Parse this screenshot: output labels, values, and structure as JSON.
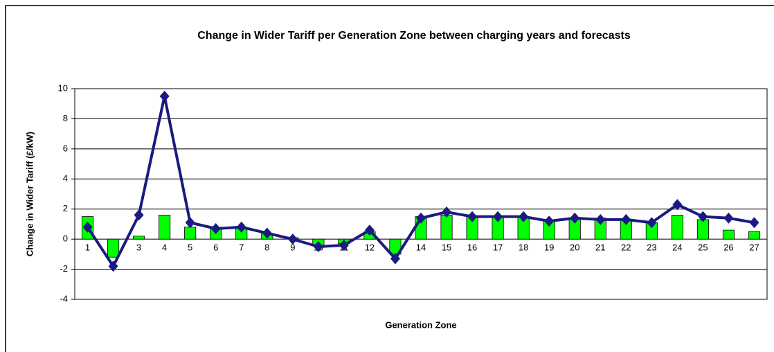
{
  "chart_data": {
    "type": "bar",
    "title": "Change in Wider Tariff per Generation Zone between charging years and forecasts",
    "x_label": "Generation Zone",
    "y_label": "Change in Wider Tariff (£/kW)",
    "categories": [
      "1",
      null,
      "3",
      "4",
      "5",
      "6",
      "7",
      "8",
      "9",
      "10",
      "11",
      "12",
      "13",
      "14",
      "15",
      "16",
      "17",
      "18",
      "19",
      "20",
      "21",
      "22",
      "23",
      "24",
      "25",
      "26",
      "27"
    ],
    "series": [
      {
        "type": "bar",
        "color": "#00ff00",
        "values": [
          1.5,
          -1.2,
          0.2,
          1.6,
          0.8,
          0.7,
          0.8,
          0.4,
          0.1,
          -0.4,
          -0.3,
          0.5,
          -1.0,
          1.5,
          1.6,
          1.5,
          1.5,
          1.5,
          1.3,
          1.4,
          1.4,
          1.3,
          1.1,
          1.6,
          1.3,
          0.6,
          0.5
        ]
      },
      {
        "type": "line",
        "color": "#1a1a80",
        "values": [
          0.8,
          -1.8,
          1.6,
          9.5,
          1.1,
          0.7,
          0.8,
          0.4,
          0.0,
          -0.5,
          -0.4,
          0.6,
          -1.3,
          1.4,
          1.8,
          1.5,
          1.5,
          1.5,
          1.2,
          1.4,
          1.3,
          1.3,
          1.1,
          2.3,
          1.5,
          1.4,
          1.1
        ]
      }
    ],
    "ylim": [
      -4,
      10
    ],
    "yticks": [
      -4,
      -2,
      0,
      2,
      4,
      6,
      8,
      10
    ],
    "grid": true
  }
}
